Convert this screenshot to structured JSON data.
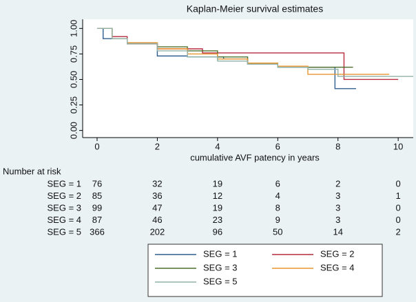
{
  "chart_data": {
    "type": "step",
    "title": "Kaplan-Meier survival estimates",
    "x_label": "cumulative AVF patency in years",
    "xlim": [
      -0.48,
      10.5
    ],
    "ylim": [
      -0.07,
      1.09
    ],
    "xticks": [
      0,
      2,
      4,
      6,
      8,
      10
    ],
    "yticks": [
      {
        "value": 0,
        "label": "0.00"
      },
      {
        "value": 0.25,
        "label": "0.25"
      },
      {
        "value": 0.5,
        "label": "0.50"
      },
      {
        "value": 0.75,
        "label": "0.75"
      },
      {
        "value": 1,
        "label": "1.00"
      }
    ],
    "series": [
      {
        "name": "SEG = 1",
        "color": "#2f5f8f",
        "x": [
          0,
          0.2,
          1,
          2,
          3,
          4.2,
          5,
          6,
          7.9,
          8.6
        ],
        "values": [
          1,
          0.9,
          0.85,
          0.73,
          0.72,
          0.7,
          0.65,
          0.62,
          0.41,
          0.41
        ]
      },
      {
        "name": "SEG = 2",
        "color": "#b52a3d",
        "x": [
          0,
          0.5,
          1,
          2,
          3.5,
          8.2,
          10
        ],
        "values": [
          1,
          0.92,
          0.85,
          0.8,
          0.76,
          0.5,
          0.5
        ]
      },
      {
        "name": "SEG = 3",
        "color": "#4b6d2b",
        "x": [
          0,
          0.5,
          1,
          2,
          3,
          4,
          5,
          6,
          8.5
        ],
        "values": [
          1,
          0.9,
          0.85,
          0.82,
          0.78,
          0.72,
          0.66,
          0.62,
          0.62
        ]
      },
      {
        "name": "SEG = 4",
        "color": "#e8952c",
        "x": [
          0,
          0.5,
          1,
          2,
          3,
          4,
          5,
          6,
          7,
          9.7
        ],
        "values": [
          1,
          0.9,
          0.86,
          0.8,
          0.75,
          0.7,
          0.66,
          0.63,
          0.55,
          0.55
        ]
      },
      {
        "name": "SEG = 5",
        "color": "#8fb1a9",
        "x": [
          0,
          0.5,
          1,
          2,
          3,
          4,
          5,
          6,
          7,
          8,
          10.5
        ],
        "values": [
          1,
          0.9,
          0.85,
          0.78,
          0.72,
          0.68,
          0.65,
          0.62,
          0.6,
          0.53,
          0.53
        ]
      }
    ]
  },
  "risk_table": {
    "title": "Number at risk",
    "rows": [
      {
        "label": "SEG = 1",
        "counts": [
          "76",
          "32",
          "19",
          "6",
          "2",
          "0"
        ]
      },
      {
        "label": "SEG = 2",
        "counts": [
          "85",
          "36",
          "12",
          "4",
          "3",
          "1"
        ]
      },
      {
        "label": "SEG = 3",
        "counts": [
          "99",
          "47",
          "19",
          "8",
          "3",
          "0"
        ]
      },
      {
        "label": "SEG = 4",
        "counts": [
          "87",
          "46",
          "23",
          "9",
          "3",
          "0"
        ]
      },
      {
        "label": "SEG = 5",
        "counts": [
          "366",
          "202",
          "96",
          "50",
          "14",
          "2"
        ]
      }
    ]
  }
}
